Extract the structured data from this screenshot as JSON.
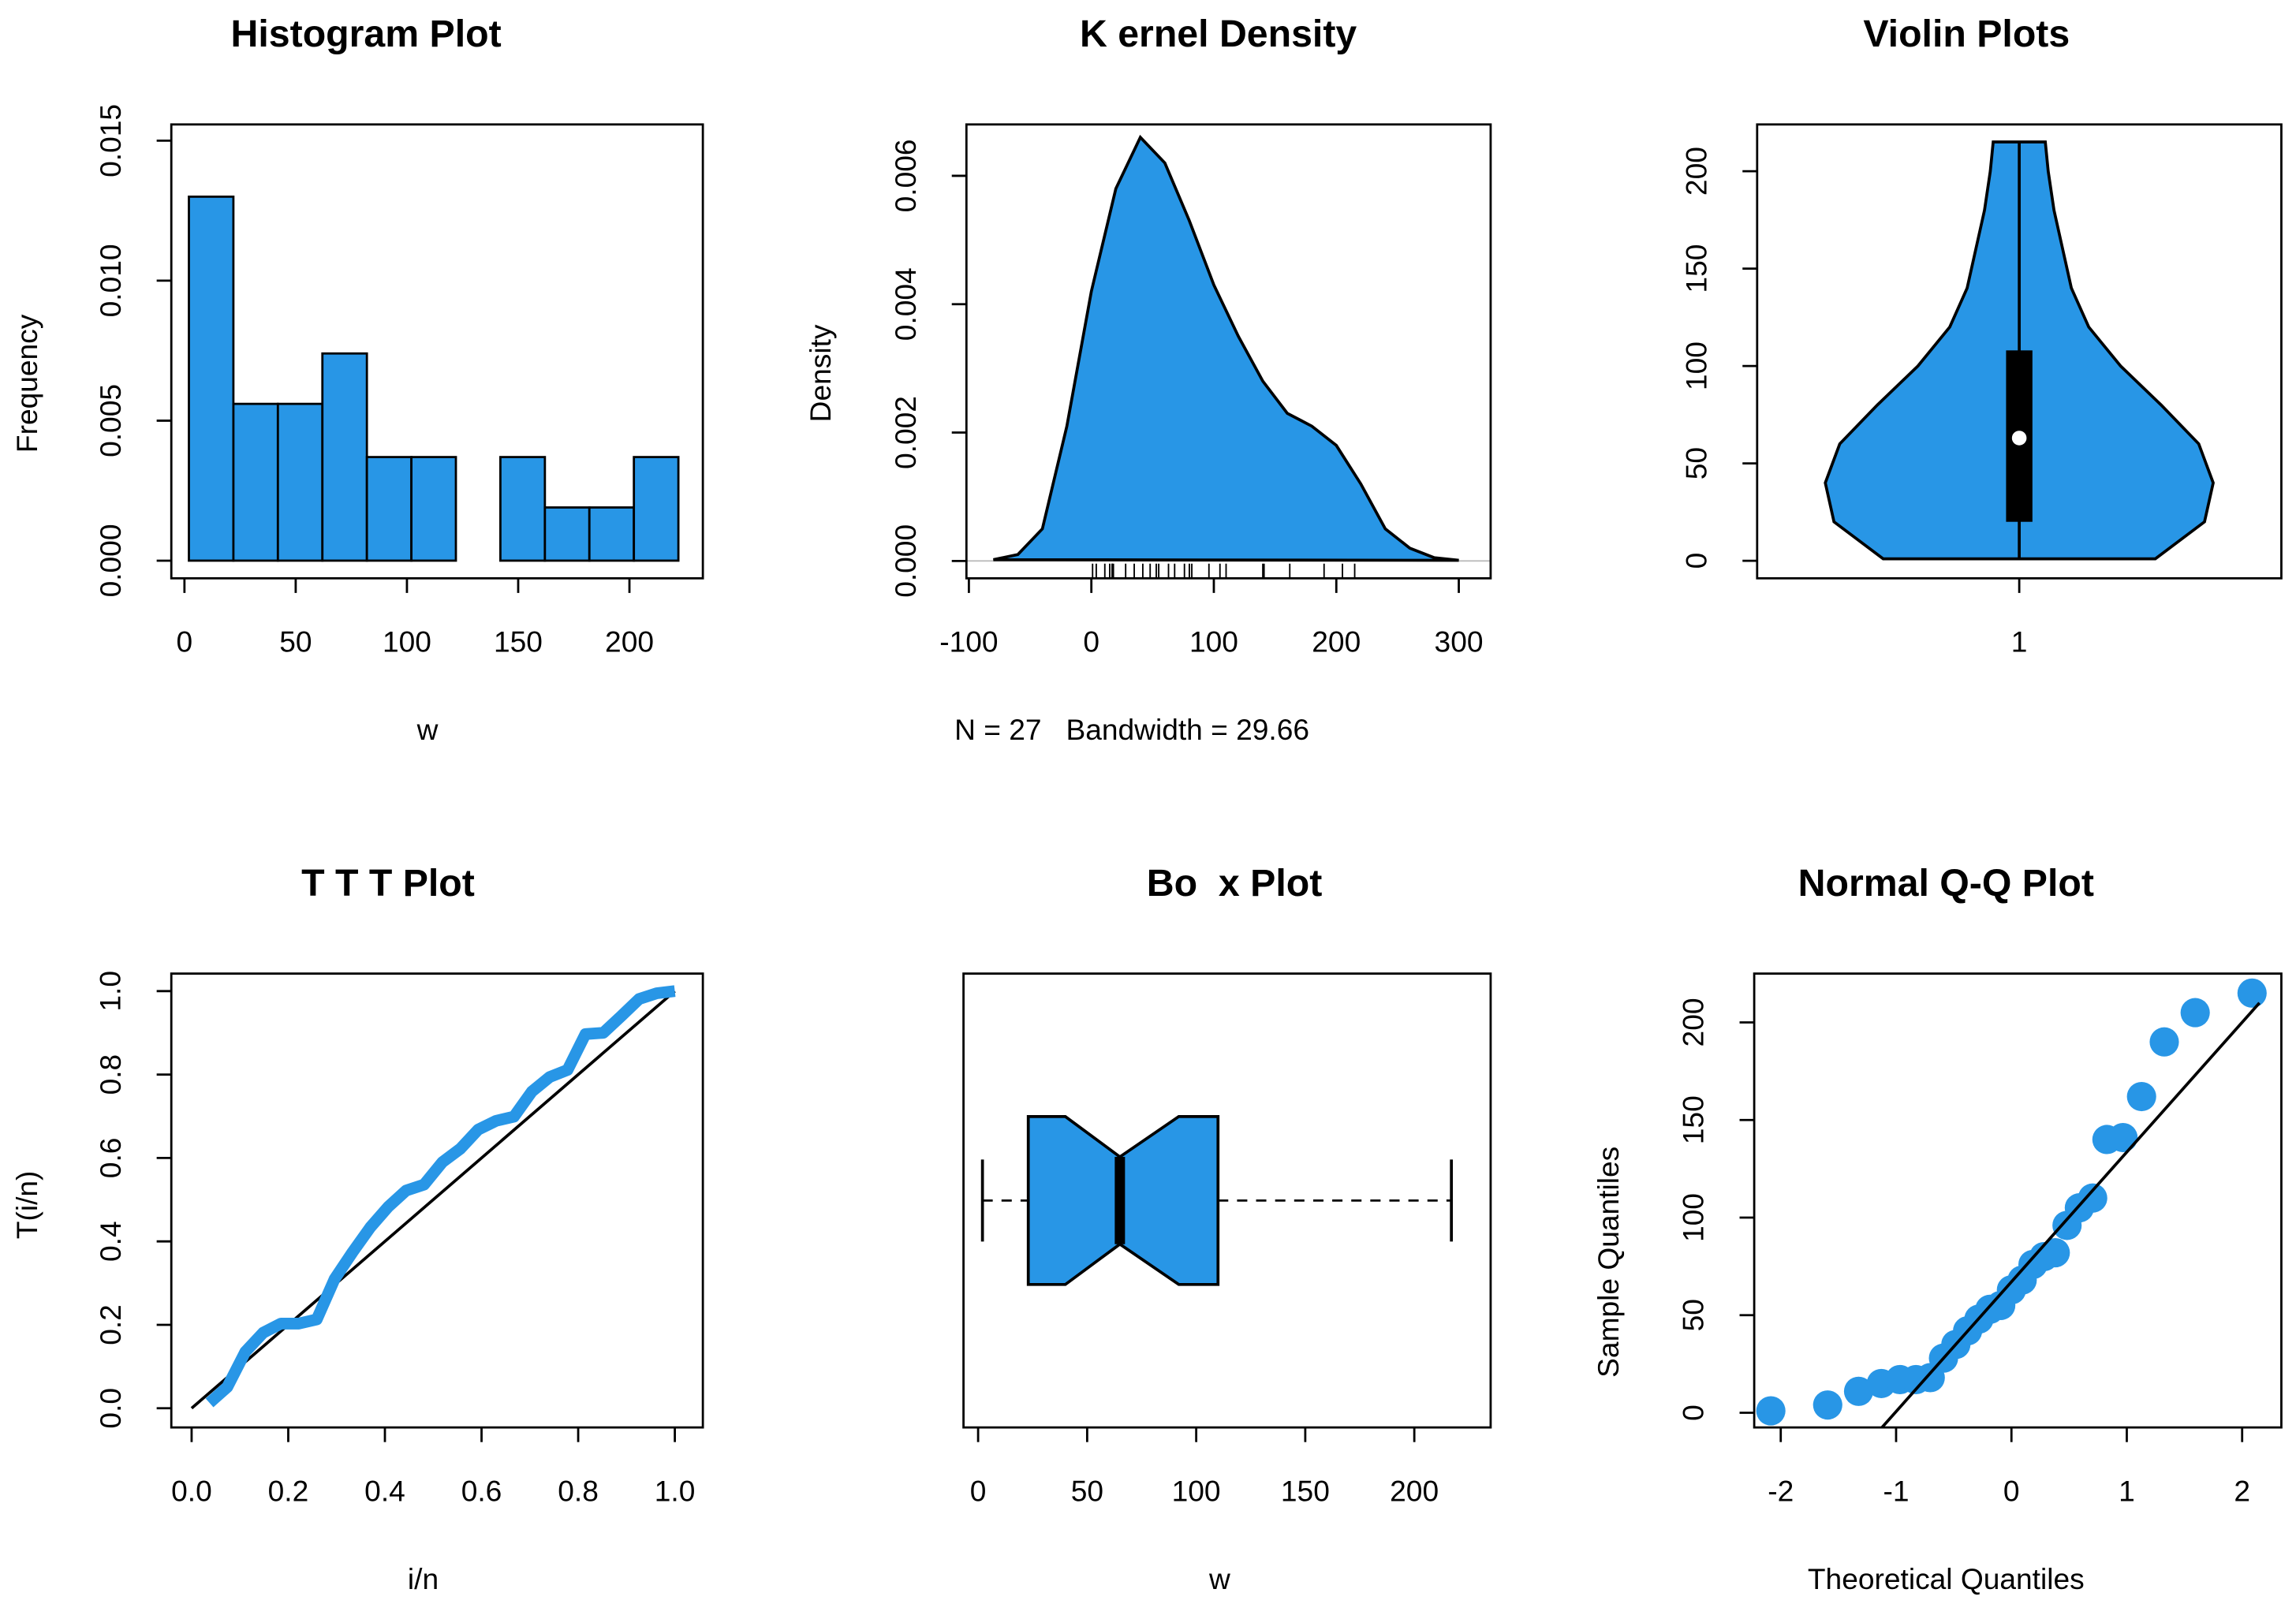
{
  "chart_data": [
    {
      "type": "histogram",
      "title": "Histogram Plot",
      "xlabel": "w",
      "ylabel": "Frequency",
      "color": "#2896e6",
      "bins": [
        2,
        22,
        42,
        62,
        82,
        102,
        122,
        142,
        162,
        182,
        202,
        222
      ],
      "values": [
        0.013,
        0.0056,
        0.0056,
        0.0074,
        0.0037,
        0.0037,
        0,
        0.0037,
        0.0019,
        0.0019,
        0.0037
      ],
      "xlim": [
        -5.9,
        233
      ],
      "xticks": [
        0,
        50,
        100,
        150,
        200
      ],
      "ylim": [
        -0.00063,
        0.01558
      ],
      "yticks": [
        {
          "value": 0,
          "label": "0.000"
        },
        {
          "value": 0.005,
          "label": "0.005"
        },
        {
          "value": 0.01,
          "label": "0.010"
        },
        {
          "value": 0.015,
          "label": "0.015"
        }
      ]
    },
    {
      "type": "density",
      "title": "K ernel Density",
      "ylabel": "Density",
      "subtitle": "N = 27   Bandwidth = 29.66",
      "color": "#2896e6",
      "x": [
        -80,
        -60,
        -40,
        -20,
        0,
        20,
        40,
        60,
        80,
        100,
        120,
        140,
        160,
        180,
        200,
        220,
        240,
        260,
        280,
        300
      ],
      "values": [
        2e-05,
        0.0001,
        0.0005,
        0.0021,
        0.0042,
        0.0058,
        0.0066,
        0.0062,
        0.0053,
        0.0043,
        0.0035,
        0.0028,
        0.0023,
        0.0021,
        0.0018,
        0.0012,
        0.0005,
        0.0002,
        5e-05,
        1e-05
      ],
      "rug": [
        1,
        4,
        11,
        15,
        17,
        17,
        18,
        28,
        35,
        42,
        48,
        53,
        55,
        63,
        68,
        76,
        80,
        82,
        96,
        105,
        110,
        140,
        141,
        162,
        190,
        205,
        215
      ],
      "xlim": [
        -102,
        326
      ],
      "xticks": [
        -100,
        0,
        100,
        200,
        300
      ],
      "ylim": [
        -0.00027,
        0.0068
      ],
      "yticks": [
        {
          "value": 0,
          "label": "0.000"
        },
        {
          "value": 0.002,
          "label": "0.002"
        },
        {
          "value": 0.004,
          "label": "0.004"
        },
        {
          "value": 0.006,
          "label": "0.006"
        }
      ]
    },
    {
      "type": "violin",
      "title": "Violin Plots",
      "categories": [
        "1"
      ],
      "color": "#2896e6",
      "y": [
        1,
        20,
        40,
        60,
        80,
        100,
        120,
        140,
        160,
        180,
        200,
        215
      ],
      "density": [
        0.0047,
        0.0064,
        0.0067,
        0.0062,
        0.0049,
        0.0035,
        0.0024,
        0.0018,
        0.0015,
        0.0012,
        0.001,
        0.0009
      ],
      "box": {
        "min": 1,
        "q1": 20,
        "median": 63,
        "q3": 108,
        "max": 215
      },
      "ylim": [
        -9,
        224
      ],
      "yticks": [
        0,
        50,
        100,
        150,
        200
      ]
    },
    {
      "type": "line",
      "title": "T T T Plot",
      "xlabel": "i/n",
      "ylabel": "T(i/n)",
      "x": [
        0.037,
        0.074,
        0.111,
        0.148,
        0.185,
        0.222,
        0.259,
        0.296,
        0.333,
        0.37,
        0.407,
        0.444,
        0.481,
        0.519,
        0.556,
        0.593,
        0.63,
        0.667,
        0.704,
        0.741,
        0.778,
        0.815,
        0.852,
        0.889,
        0.926,
        0.963,
        1
      ],
      "series": [
        {
          "color": "#2896e6",
          "values": [
            0.013,
            0.051,
            0.135,
            0.181,
            0.203,
            0.203,
            0.213,
            0.31,
            0.374,
            0.434,
            0.483,
            0.522,
            0.536,
            0.59,
            0.622,
            0.668,
            0.689,
            0.699,
            0.759,
            0.794,
            0.811,
            0.897,
            0.9,
            0.94,
            0.981,
            0.995,
            1
          ]
        }
      ],
      "reference_line": {
        "x": [
          0,
          1
        ],
        "y": [
          0,
          1
        ],
        "color": "#000000"
      },
      "xlim": [
        -0.042,
        1.058
      ],
      "ylim": [
        -0.046,
        1.042
      ],
      "xticks": [
        {
          "value": 0,
          "label": "0.0"
        },
        {
          "value": 0.2,
          "label": "0.2"
        },
        {
          "value": 0.4,
          "label": "0.4"
        },
        {
          "value": 0.6,
          "label": "0.6"
        },
        {
          "value": 0.8,
          "label": "0.8"
        },
        {
          "value": 1,
          "label": "1.0"
        }
      ],
      "yticks": [
        {
          "value": 0,
          "label": "0.0"
        },
        {
          "value": 0.2,
          "label": "0.2"
        },
        {
          "value": 0.4,
          "label": "0.4"
        },
        {
          "value": 0.6,
          "label": "0.6"
        },
        {
          "value": 0.8,
          "label": "0.8"
        },
        {
          "value": 1,
          "label": "1.0"
        }
      ]
    },
    {
      "type": "box",
      "title": "Bo  x Plot",
      "xlabel": "w",
      "color": "#2896e6",
      "box": {
        "min": 2,
        "q1": 23,
        "notch_lower": 40,
        "median": 65,
        "notch_upper": 92,
        "q3": 110,
        "max": 217
      },
      "xlim": [
        -6.7,
        235
      ],
      "xticks": [
        0,
        50,
        100,
        150,
        200
      ]
    },
    {
      "type": "scatter",
      "title": "Normal Q-Q Plot",
      "xlabel": "Theoretical Quantiles",
      "ylabel": "Sample Quantiles",
      "color": "#2896e6",
      "x": [
        -2.086,
        -1.593,
        -1.325,
        -1.128,
        -0.967,
        -0.828,
        -0.704,
        -0.589,
        -0.482,
        -0.38,
        -0.282,
        -0.187,
        -0.093,
        0,
        0.093,
        0.187,
        0.282,
        0.38,
        0.482,
        0.589,
        0.704,
        0.828,
        0.967,
        1.128,
        1.325,
        1.593,
        2.086
      ],
      "values": [
        1,
        4,
        11,
        15,
        17,
        17,
        18,
        28,
        35,
        42,
        48,
        53,
        55,
        63,
        68,
        76,
        80,
        82,
        96,
        105,
        110,
        140,
        141,
        162,
        190,
        205,
        215
      ],
      "qq_line": {
        "x": [
          -1.13,
          2.15
        ],
        "y": [
          -8,
          210
        ],
        "color": "#000000"
      },
      "xlim": [
        -2.23,
        2.34
      ],
      "ylim": [
        -7.5,
        225
      ],
      "xticks": [
        -2,
        -1,
        0,
        1,
        2
      ],
      "yticks": [
        0,
        50,
        100,
        150,
        200
      ]
    }
  ]
}
